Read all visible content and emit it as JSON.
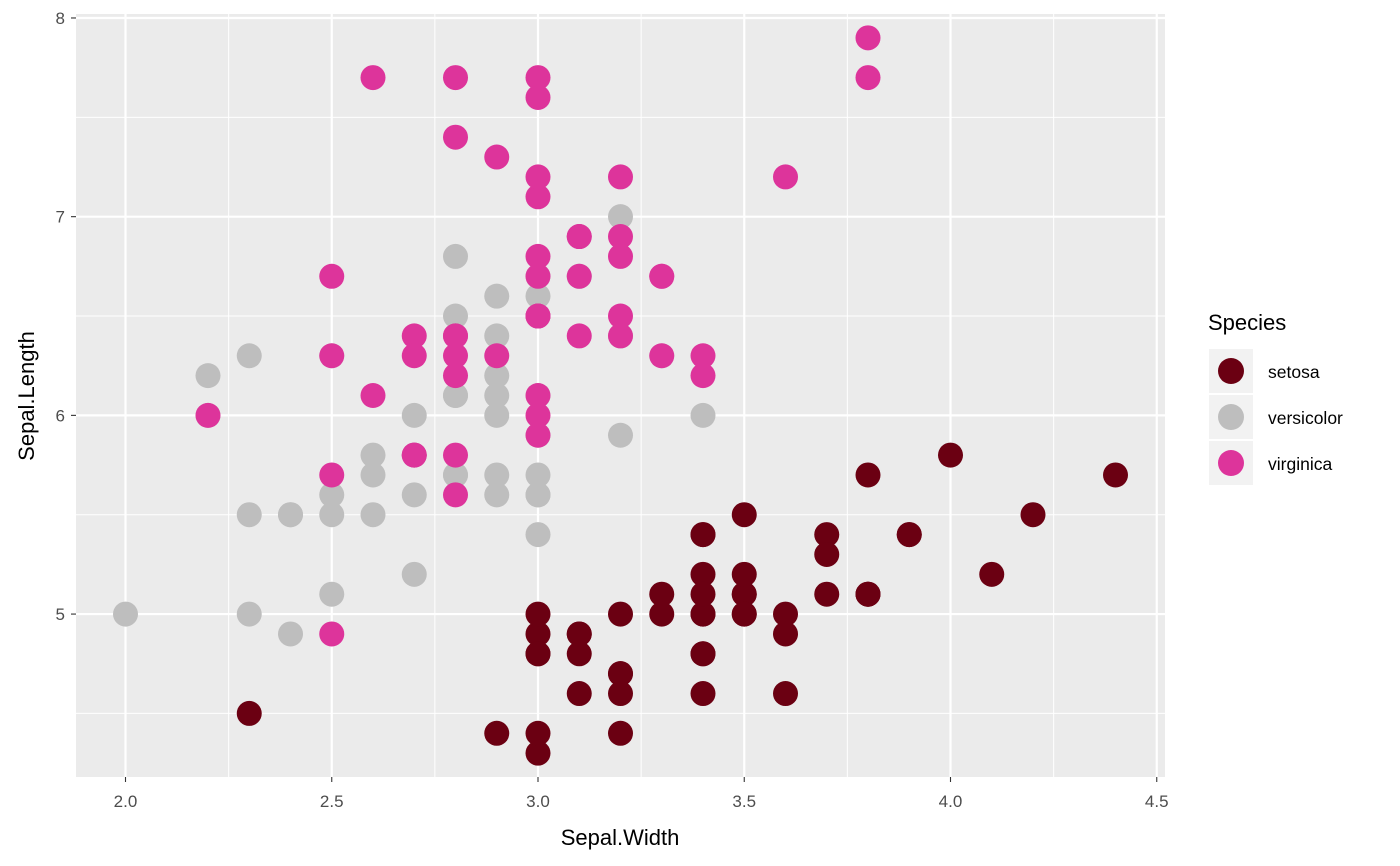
{
  "chart_data": {
    "type": "scatter",
    "xlabel": "Sepal.Width",
    "ylabel": "Sepal.Length",
    "xlim": [
      1.88,
      4.52
    ],
    "ylim": [
      4.18,
      8.02
    ],
    "x_ticks": [
      2.0,
      2.5,
      3.0,
      3.5,
      4.0,
      4.5
    ],
    "x_tick_labels": [
      "2.0",
      "2.5",
      "3.0",
      "3.5",
      "4.0",
      "4.5"
    ],
    "y_ticks": [
      5,
      6,
      7,
      8
    ],
    "y_tick_labels": [
      "5",
      "6",
      "7",
      "8"
    ],
    "grid": true,
    "legend": {
      "title": "Species",
      "placement": "right",
      "entries": [
        "setosa",
        "versicolor",
        "virginica"
      ]
    },
    "colors": {
      "setosa": "#6b0012",
      "versicolor": "#bebebe",
      "virginica": "#dd349b",
      "panel": "#ebebeb",
      "grid": "#ffffff"
    },
    "series": [
      {
        "name": "setosa",
        "points": [
          [
            3.5,
            5.1
          ],
          [
            3.0,
            4.9
          ],
          [
            3.2,
            4.7
          ],
          [
            3.1,
            4.6
          ],
          [
            3.6,
            5.0
          ],
          [
            3.9,
            5.4
          ],
          [
            3.4,
            4.6
          ],
          [
            3.4,
            5.0
          ],
          [
            2.9,
            4.4
          ],
          [
            3.1,
            4.9
          ],
          [
            3.7,
            5.4
          ],
          [
            3.4,
            4.8
          ],
          [
            3.0,
            4.8
          ],
          [
            3.0,
            4.3
          ],
          [
            4.0,
            5.8
          ],
          [
            4.4,
            5.7
          ],
          [
            3.9,
            5.4
          ],
          [
            3.5,
            5.1
          ],
          [
            3.8,
            5.7
          ],
          [
            3.8,
            5.1
          ],
          [
            3.4,
            5.4
          ],
          [
            3.7,
            5.1
          ],
          [
            3.6,
            4.6
          ],
          [
            3.3,
            5.1
          ],
          [
            3.4,
            4.8
          ],
          [
            3.0,
            5.0
          ],
          [
            3.4,
            5.0
          ],
          [
            3.5,
            5.2
          ],
          [
            3.4,
            5.2
          ],
          [
            3.2,
            4.7
          ],
          [
            3.1,
            4.8
          ],
          [
            3.4,
            5.4
          ],
          [
            4.1,
            5.2
          ],
          [
            4.2,
            5.5
          ],
          [
            3.1,
            4.9
          ],
          [
            3.2,
            5.0
          ],
          [
            3.5,
            5.5
          ],
          [
            3.6,
            4.9
          ],
          [
            3.0,
            4.4
          ],
          [
            3.4,
            5.1
          ],
          [
            3.5,
            5.0
          ],
          [
            2.3,
            4.5
          ],
          [
            3.2,
            4.4
          ],
          [
            3.5,
            5.0
          ],
          [
            3.8,
            5.1
          ],
          [
            3.0,
            4.8
          ],
          [
            3.8,
            5.1
          ],
          [
            3.2,
            4.6
          ],
          [
            3.7,
            5.3
          ],
          [
            3.3,
            5.0
          ]
        ]
      },
      {
        "name": "versicolor",
        "points": [
          [
            3.2,
            7.0
          ],
          [
            3.2,
            6.4
          ],
          [
            3.1,
            6.9
          ],
          [
            2.3,
            5.5
          ],
          [
            2.8,
            6.5
          ],
          [
            2.8,
            5.7
          ],
          [
            3.3,
            6.3
          ],
          [
            2.4,
            4.9
          ],
          [
            2.9,
            6.6
          ],
          [
            2.7,
            5.2
          ],
          [
            2.0,
            5.0
          ],
          [
            3.0,
            5.9
          ],
          [
            2.2,
            6.0
          ],
          [
            2.9,
            6.1
          ],
          [
            2.9,
            5.6
          ],
          [
            3.1,
            6.7
          ],
          [
            3.0,
            5.6
          ],
          [
            2.7,
            5.8
          ],
          [
            2.2,
            6.2
          ],
          [
            2.5,
            5.6
          ],
          [
            3.2,
            5.9
          ],
          [
            2.8,
            6.1
          ],
          [
            2.5,
            6.3
          ],
          [
            2.8,
            6.1
          ],
          [
            2.9,
            6.4
          ],
          [
            3.0,
            6.6
          ],
          [
            2.8,
            6.8
          ],
          [
            3.0,
            6.7
          ],
          [
            2.9,
            6.0
          ],
          [
            2.6,
            5.7
          ],
          [
            2.4,
            5.5
          ],
          [
            2.4,
            5.5
          ],
          [
            2.7,
            5.8
          ],
          [
            2.7,
            6.0
          ],
          [
            3.0,
            5.4
          ],
          [
            3.4,
            6.0
          ],
          [
            3.1,
            6.7
          ],
          [
            2.3,
            6.3
          ],
          [
            3.0,
            5.6
          ],
          [
            2.5,
            5.5
          ],
          [
            2.6,
            5.5
          ],
          [
            3.0,
            6.1
          ],
          [
            2.6,
            5.8
          ],
          [
            2.3,
            5.0
          ],
          [
            2.7,
            5.6
          ],
          [
            3.0,
            5.7
          ],
          [
            2.9,
            5.7
          ],
          [
            2.9,
            6.2
          ],
          [
            2.5,
            5.1
          ],
          [
            2.8,
            5.7
          ]
        ]
      },
      {
        "name": "virginica",
        "points": [
          [
            3.3,
            6.3
          ],
          [
            2.7,
            5.8
          ],
          [
            3.0,
            7.1
          ],
          [
            2.9,
            6.3
          ],
          [
            3.0,
            6.5
          ],
          [
            3.0,
            7.6
          ],
          [
            2.5,
            4.9
          ],
          [
            2.9,
            7.3
          ],
          [
            2.5,
            6.7
          ],
          [
            3.6,
            7.2
          ],
          [
            3.2,
            6.5
          ],
          [
            2.7,
            6.4
          ],
          [
            3.0,
            6.8
          ],
          [
            2.5,
            5.7
          ],
          [
            2.8,
            5.8
          ],
          [
            3.2,
            6.4
          ],
          [
            3.0,
            6.5
          ],
          [
            3.8,
            7.7
          ],
          [
            2.6,
            7.7
          ],
          [
            2.2,
            6.0
          ],
          [
            3.2,
            6.9
          ],
          [
            2.8,
            5.6
          ],
          [
            2.8,
            7.7
          ],
          [
            2.7,
            6.3
          ],
          [
            3.3,
            6.7
          ],
          [
            3.2,
            7.2
          ],
          [
            2.8,
            6.2
          ],
          [
            3.0,
            6.1
          ],
          [
            2.8,
            6.4
          ],
          [
            3.0,
            7.2
          ],
          [
            2.8,
            7.4
          ],
          [
            3.8,
            7.9
          ],
          [
            2.8,
            6.4
          ],
          [
            2.8,
            6.3
          ],
          [
            2.6,
            6.1
          ],
          [
            3.0,
            7.7
          ],
          [
            3.4,
            6.3
          ],
          [
            3.1,
            6.4
          ],
          [
            3.0,
            6.0
          ],
          [
            3.1,
            6.9
          ],
          [
            3.1,
            6.7
          ],
          [
            3.1,
            6.9
          ],
          [
            2.7,
            5.8
          ],
          [
            3.2,
            6.8
          ],
          [
            3.3,
            6.7
          ],
          [
            3.0,
            6.7
          ],
          [
            2.5,
            6.3
          ],
          [
            3.0,
            6.5
          ],
          [
            3.4,
            6.2
          ],
          [
            3.0,
            5.9
          ]
        ]
      }
    ]
  }
}
